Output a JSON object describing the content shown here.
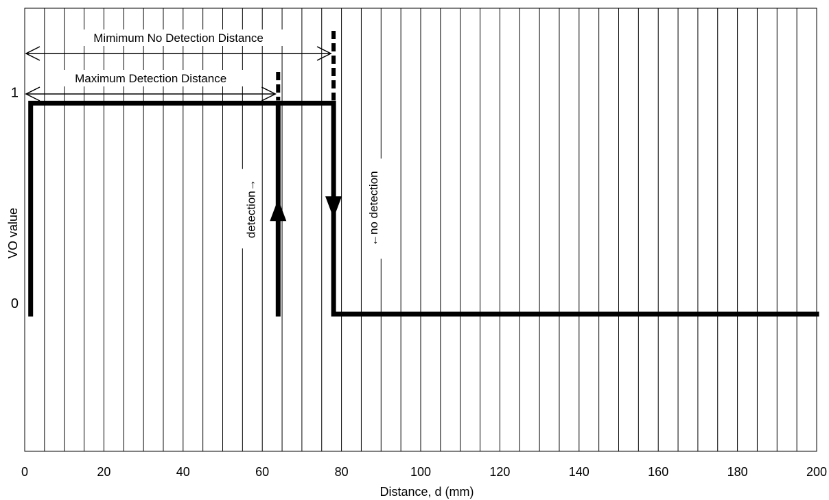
{
  "chart_data": {
    "type": "line",
    "title": "",
    "xlabel": "Distance, d (mm)",
    "ylabel": "VO value",
    "xlim": [
      0,
      200
    ],
    "ylim": [
      -0.65,
      1.45
    ],
    "x_ticks": [
      "0",
      "20",
      "40",
      "60",
      "80",
      "100",
      "120",
      "140",
      "160",
      "180",
      "200"
    ],
    "y_ticks": [
      "0",
      "1"
    ],
    "grid": {
      "vertical": true,
      "horizontal": false,
      "x_step": 5
    },
    "series": [
      {
        "points": [
          {
            "x": 1.5,
            "y": 0
          },
          {
            "x": 1.5,
            "y": 1
          },
          {
            "x": 78,
            "y": 1
          },
          {
            "x": 78,
            "y": 0
          },
          {
            "x": 200,
            "y": 0
          }
        ]
      },
      {
        "points": [
          {
            "x": 64,
            "y": 0
          },
          {
            "x": 64,
            "y": 1
          }
        ]
      }
    ],
    "threshold_lines": [
      {
        "name": "maximum-detection-distance",
        "x": 64
      },
      {
        "name": "minimum-no-detection-distance",
        "x": 78
      }
    ],
    "annotations": [
      {
        "name": "minimum-no-detection-distance",
        "text": "Mimimum No Detection Distance",
        "x_start": 0,
        "x_end": 78
      },
      {
        "name": "maximum-detection-distance",
        "text": "Maximum Detection Distance",
        "x_start": 0,
        "x_end": 64
      },
      {
        "name": "detection",
        "text": "detection→",
        "x": 64
      },
      {
        "name": "no-detection",
        "text": "←no detection",
        "x": 78
      }
    ]
  }
}
